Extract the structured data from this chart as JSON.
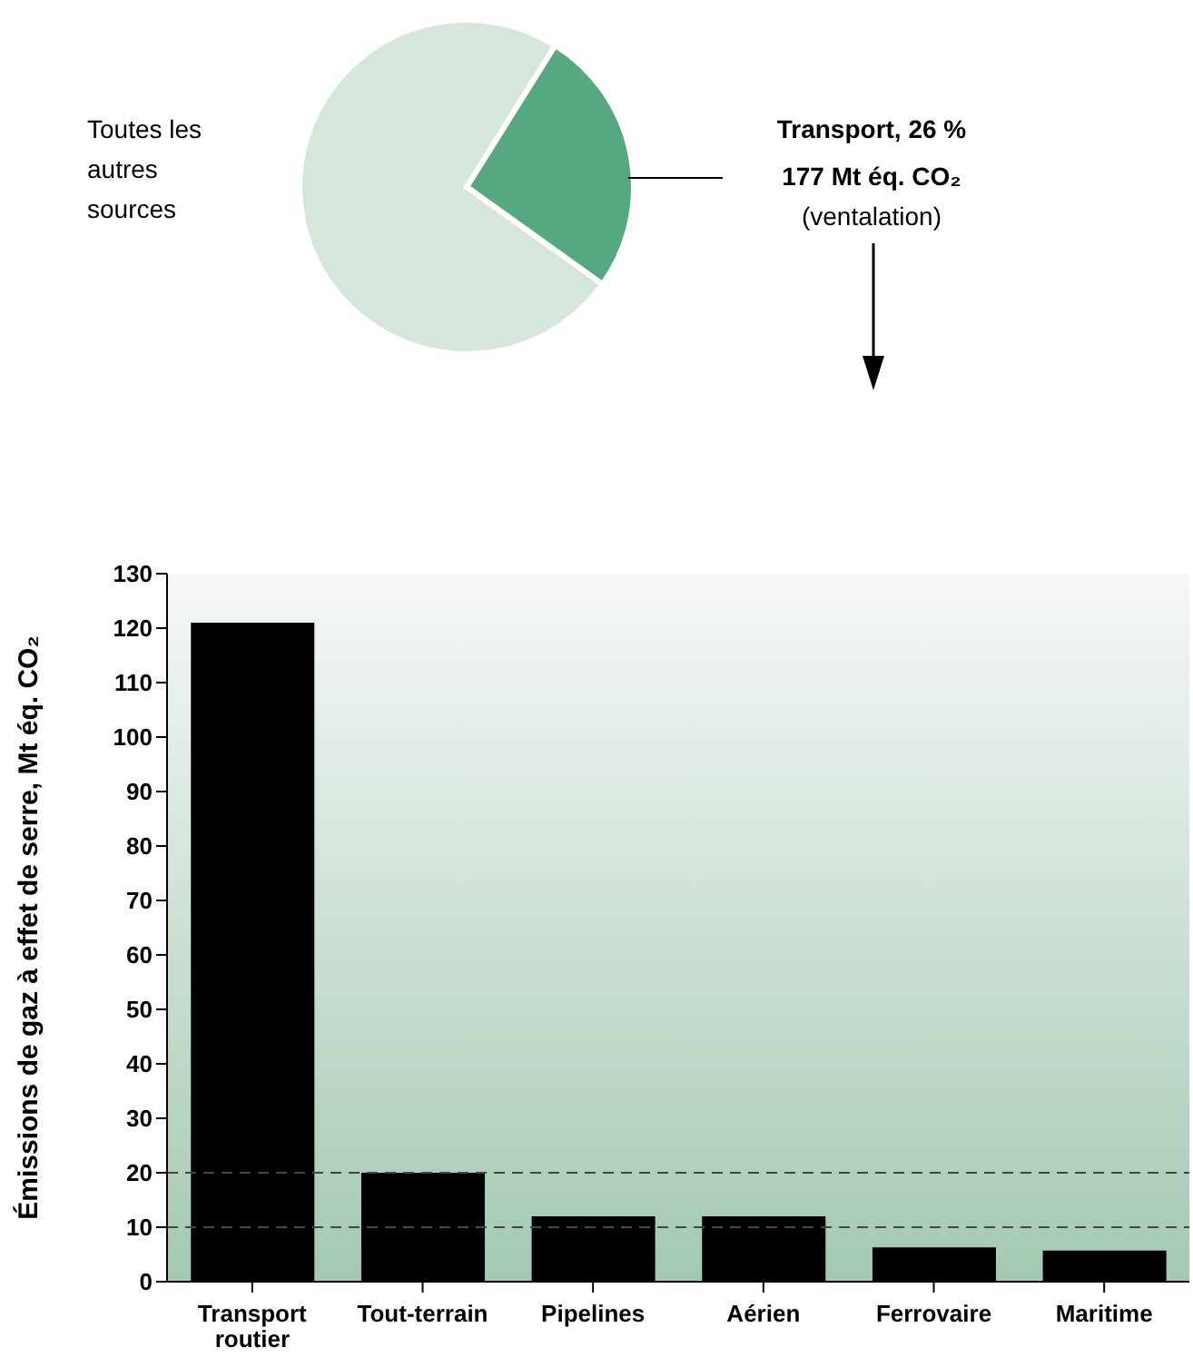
{
  "chart_data": [
    {
      "type": "pie",
      "categories": [
        "Transport",
        "Toutes les autres sources"
      ],
      "values": [
        26,
        74
      ],
      "colors": [
        "#56a880",
        "#d5e6da"
      ],
      "value_labels": [
        "26 %",
        null
      ],
      "annotations": [
        "177 Mt éq. CO₂",
        "(ventalation)"
      ]
    },
    {
      "type": "bar",
      "categories": [
        "Transport routier",
        "Tout-terrain",
        "Pipelines",
        "Aérien",
        "Ferrovaire",
        "Maritime"
      ],
      "values": [
        121,
        20,
        12,
        12,
        6.3,
        5.7
      ],
      "color": "#000000",
      "ylabel": "Émissions de gaz à effet de serre, Mt éq. CO₂",
      "ylim": [
        0,
        130
      ],
      "yticks": [
        0,
        10,
        20,
        30,
        40,
        50,
        60,
        70,
        80,
        90,
        100,
        110,
        120,
        130
      ],
      "ref_lines": [
        {
          "axis": "y",
          "value": 20,
          "line_style": "dashed",
          "color": "#444444"
        },
        {
          "axis": "y",
          "value": 10,
          "line_style": "dashed",
          "color": "#444444"
        }
      ]
    }
  ]
}
